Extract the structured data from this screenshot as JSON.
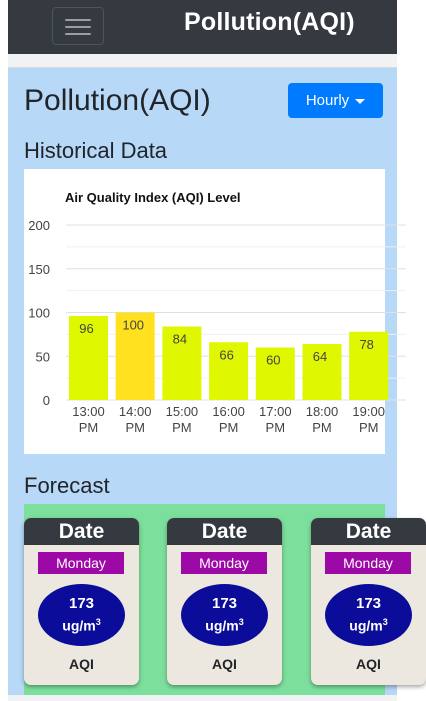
{
  "navbar": {
    "brand": "Pollution(AQI)"
  },
  "page": {
    "title": "Pollution(AQI)",
    "dropdown_label": "Hourly",
    "historical_title": "Historical Data",
    "forecast_title": "Forecast"
  },
  "chart_data": {
    "type": "bar",
    "title": "Air Quality Index (AQI) Level",
    "categories": [
      [
        "13:00",
        "PM"
      ],
      [
        "14:00",
        "PM"
      ],
      [
        "15:00",
        "PM"
      ],
      [
        "16:00",
        "PM"
      ],
      [
        "17:00",
        "PM"
      ],
      [
        "18:00",
        "PM"
      ],
      [
        "19:00",
        "PM"
      ]
    ],
    "values": [
      96,
      100,
      84,
      66,
      60,
      64,
      78
    ],
    "ylim": [
      0,
      200
    ],
    "yticks": [
      0,
      50,
      100,
      150,
      200
    ],
    "grid": true,
    "colors": {
      "bar": "#dff700",
      "highlight": "#ffe11f",
      "highlight_index": 1
    }
  },
  "forecast": {
    "cards": [
      {
        "header": "Date",
        "day": "Monday",
        "value": "173",
        "unit": "ug/m",
        "unit_sup": "3",
        "label": "AQI"
      },
      {
        "header": "Date",
        "day": "Monday",
        "value": "173",
        "unit": "ug/m",
        "unit_sup": "3",
        "label": "AQI"
      },
      {
        "header": "Date",
        "day": "Monday",
        "value": "173",
        "unit": "ug/m",
        "unit_sup": "3",
        "label": "AQI"
      }
    ]
  },
  "colors": {
    "navbar": "#343a40",
    "background": "#b7d8f7",
    "button": "#007bff",
    "forecast_bg": "#7ddf9c"
  }
}
